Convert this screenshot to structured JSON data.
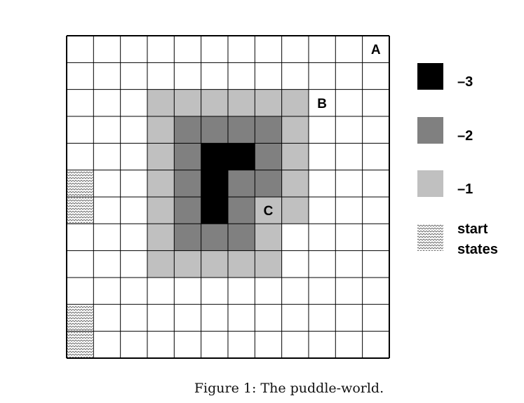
{
  "grid": {
    "rows": 12,
    "cols": 12,
    "colors": {
      "-1": "#c0c0c0",
      "-2": "#808080",
      "-3": "#000000",
      "empty": "#ffffff",
      "line": "#000000"
    },
    "cost_rows": [
      [
        0,
        0,
        0,
        0,
        0,
        0,
        0,
        0,
        0,
        0,
        0,
        0
      ],
      [
        0,
        0,
        0,
        0,
        0,
        0,
        0,
        0,
        0,
        0,
        0,
        0
      ],
      [
        0,
        0,
        0,
        -1,
        -1,
        -1,
        -1,
        -1,
        -1,
        0,
        0,
        0
      ],
      [
        0,
        0,
        0,
        -1,
        -2,
        -2,
        -2,
        -2,
        -1,
        0,
        0,
        0
      ],
      [
        0,
        0,
        0,
        -1,
        -2,
        -3,
        -3,
        -2,
        -1,
        0,
        0,
        0
      ],
      [
        0,
        0,
        0,
        -1,
        -2,
        -3,
        -2,
        -2,
        -1,
        0,
        0,
        0
      ],
      [
        0,
        0,
        0,
        -1,
        -2,
        -3,
        -2,
        -1,
        -1,
        0,
        0,
        0
      ],
      [
        0,
        0,
        0,
        -1,
        -2,
        -2,
        -2,
        -1,
        0,
        0,
        0,
        0
      ],
      [
        0,
        0,
        0,
        -1,
        -1,
        -1,
        -1,
        -1,
        0,
        0,
        0,
        0
      ],
      [
        0,
        0,
        0,
        0,
        0,
        0,
        0,
        0,
        0,
        0,
        0,
        0
      ],
      [
        0,
        0,
        0,
        0,
        0,
        0,
        0,
        0,
        0,
        0,
        0,
        0
      ],
      [
        0,
        0,
        0,
        0,
        0,
        0,
        0,
        0,
        0,
        0,
        0,
        0
      ]
    ],
    "start_states": [
      {
        "row": 5,
        "col": 0
      },
      {
        "row": 6,
        "col": 0
      },
      {
        "row": 10,
        "col": 0
      },
      {
        "row": 11,
        "col": 0
      }
    ],
    "labels": [
      {
        "text": "A",
        "row": 0,
        "col": 11
      },
      {
        "text": "B",
        "row": 2,
        "col": 9
      },
      {
        "text": "C",
        "row": 6,
        "col": 7
      }
    ]
  },
  "legend": [
    {
      "label": "–3",
      "color": "#000000"
    },
    {
      "label": "–2",
      "color": "#808080"
    },
    {
      "label": "–1",
      "color": "#c0c0c0"
    },
    {
      "label": "start\nstates",
      "pattern": "zigzag"
    }
  ],
  "caption": "Figure 1: The puddle-world."
}
